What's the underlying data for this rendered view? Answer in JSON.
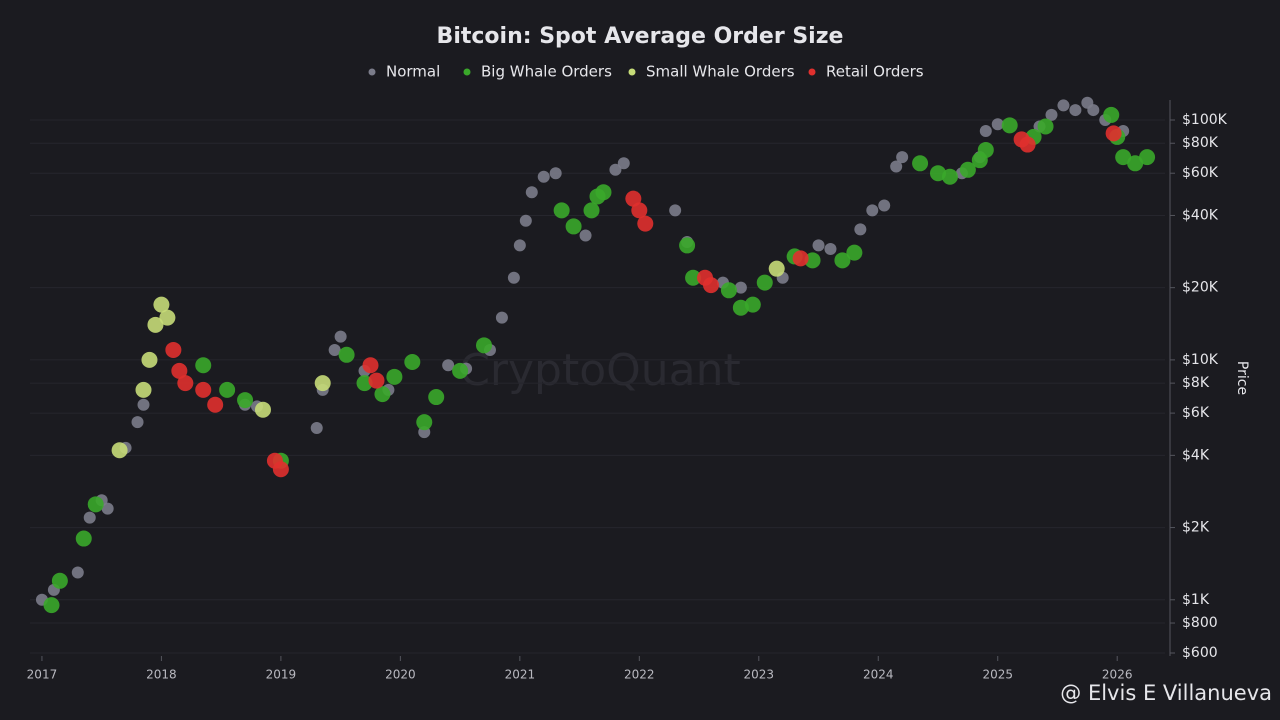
{
  "chart_data": {
    "type": "scatter",
    "title": "Bitcoin: Spot Average Order Size",
    "y_label": "Price",
    "watermark": "CryptoQuant",
    "credit": "@ Elvis E Villanueva",
    "log_y": true,
    "grid": true,
    "legend": "top",
    "xlim": [
      2016.9,
      2026.4
    ],
    "xticks": [
      2017,
      2018,
      2019,
      2020,
      2021,
      2022,
      2023,
      2024,
      2025,
      2026
    ],
    "ylim": [
      600,
      120000
    ],
    "yticks": [
      {
        "value": 600,
        "label": "$600"
      },
      {
        "value": 800,
        "label": "$800"
      },
      {
        "value": 1000,
        "label": "$1K"
      },
      {
        "value": 2000,
        "label": "$2K"
      },
      {
        "value": 4000,
        "label": "$4K"
      },
      {
        "value": 6000,
        "label": "$6K"
      },
      {
        "value": 8000,
        "label": "$8K"
      },
      {
        "value": 10000,
        "label": "$10K"
      },
      {
        "value": 20000,
        "label": "$20K"
      },
      {
        "value": 40000,
        "label": "$40K"
      },
      {
        "value": 60000,
        "label": "$60K"
      },
      {
        "value": 80000,
        "label": "$80K"
      },
      {
        "value": 100000,
        "label": "$100K"
      }
    ],
    "series": [
      {
        "name": "Normal",
        "color": "#7b7c8a",
        "x": [
          2017.0,
          2017.1,
          2017.3,
          2017.4,
          2017.5,
          2017.55,
          2017.7,
          2017.8,
          2017.85,
          2018.7,
          2018.8,
          2019.3,
          2019.35,
          2019.45,
          2019.5,
          2019.7,
          2019.9,
          2020.2,
          2020.4,
          2020.55,
          2020.75,
          2020.85,
          2020.95,
          2021.0,
          2021.05,
          2021.1,
          2021.2,
          2021.3,
          2021.55,
          2021.8,
          2021.87,
          2022.3,
          2022.4,
          2022.7,
          2022.85,
          2023.2,
          2023.5,
          2023.6,
          2023.85,
          2023.95,
          2024.05,
          2024.15,
          2024.2,
          2024.7,
          2024.85,
          2024.9,
          2025.0,
          2025.35,
          2025.45,
          2025.55,
          2025.65,
          2025.75,
          2025.8,
          2025.9,
          2026.05
        ],
        "values": [
          1000,
          1100,
          1300,
          2200,
          2600,
          2400,
          4300,
          5500,
          6500,
          6500,
          6400,
          5200,
          7500,
          11000,
          12500,
          9000,
          7500,
          5000,
          9500,
          9200,
          11000,
          15000,
          22000,
          30000,
          38000,
          50000,
          58000,
          60000,
          33000,
          62000,
          66000,
          42000,
          31000,
          21000,
          20000,
          22000,
          30000,
          29000,
          35000,
          42000,
          44000,
          64000,
          70000,
          60000,
          70000,
          90000,
          96000,
          94000,
          105000,
          115000,
          110000,
          118000,
          110000,
          100000,
          90000
        ]
      },
      {
        "name": "Big Whale Orders",
        "color": "#3aa82a",
        "x": [
          2017.08,
          2017.15,
          2017.35,
          2017.45,
          2018.35,
          2018.55,
          2018.7,
          2019.0,
          2019.55,
          2019.7,
          2019.85,
          2019.95,
          2020.1,
          2020.2,
          2020.3,
          2020.5,
          2020.7,
          2021.35,
          2021.45,
          2021.6,
          2021.65,
          2021.7,
          2022.4,
          2022.45,
          2022.75,
          2022.85,
          2022.95,
          2023.05,
          2023.3,
          2023.45,
          2023.7,
          2023.8,
          2024.35,
          2024.5,
          2024.6,
          2024.75,
          2024.85,
          2024.9,
          2025.1,
          2025.3,
          2025.4,
          2025.95,
          2026.0,
          2026.05,
          2026.15,
          2026.25
        ],
        "values": [
          950,
          1200,
          1800,
          2500,
          9500,
          7500,
          6800,
          3800,
          10500,
          8000,
          7200,
          8500,
          9800,
          5500,
          7000,
          9000,
          11500,
          42000,
          36000,
          42000,
          48000,
          50000,
          30000,
          22000,
          19500,
          16500,
          17000,
          21000,
          27000,
          26000,
          26000,
          28000,
          66000,
          60000,
          58000,
          62000,
          68000,
          75000,
          95000,
          85000,
          94000,
          105000,
          85000,
          70000,
          66000,
          70000
        ]
      },
      {
        "name": "Small Whale Orders",
        "color": "#c6dc78",
        "x": [
          2017.65,
          2017.85,
          2017.9,
          2017.95,
          2018.0,
          2018.05,
          2018.85,
          2019.35,
          2023.15
        ],
        "values": [
          4200,
          7500,
          10000,
          14000,
          17000,
          15000,
          6200,
          8000,
          24000
        ]
      },
      {
        "name": "Retail Orders",
        "color": "#e0302e",
        "x": [
          2018.1,
          2018.15,
          2018.2,
          2018.35,
          2018.45,
          2018.95,
          2019.0,
          2019.75,
          2019.8,
          2021.95,
          2022.0,
          2022.05,
          2022.55,
          2022.6,
          2023.35,
          2025.2,
          2025.25,
          2025.97
        ],
        "values": [
          11000,
          9000,
          8000,
          7500,
          6500,
          3800,
          3500,
          9500,
          8200,
          47000,
          42000,
          37000,
          22000,
          20500,
          26500,
          83000,
          79000,
          88000
        ]
      }
    ]
  }
}
